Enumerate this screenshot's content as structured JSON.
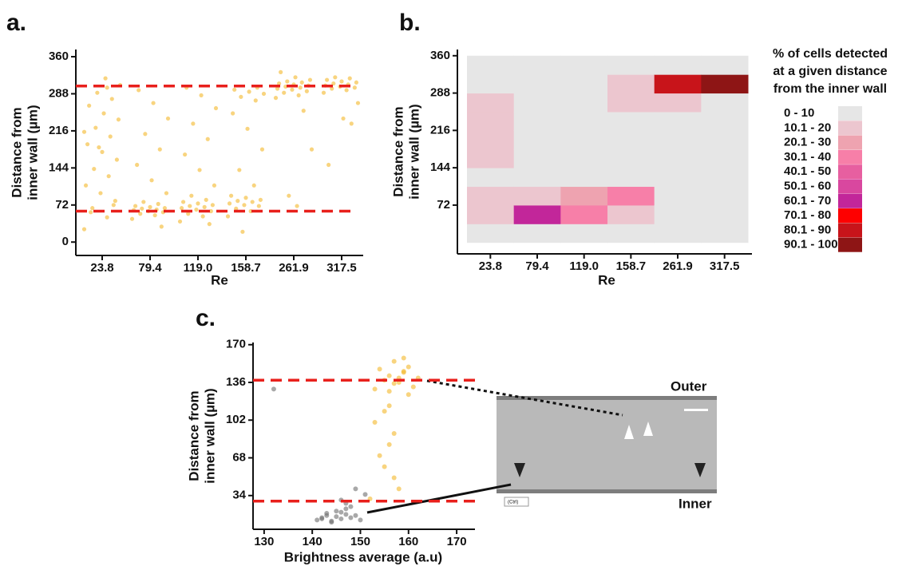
{
  "chart_data": [
    {
      "type": "strip",
      "panel_label": "a.",
      "x_label": "Re",
      "y_label": [
        "Distance from",
        "inner wall (µm)"
      ],
      "categories": [
        "23.8",
        "79.4",
        "119.0",
        "158.7",
        "261.9",
        "317.5"
      ],
      "values": [
        [
          25,
          48,
          66,
          80,
          95,
          110,
          128,
          142,
          160,
          175,
          190,
          205,
          222,
          238,
          250,
          265,
          278,
          290,
          305,
          318,
          58,
          72,
          184,
          214,
          300
        ],
        [
          45,
          52,
          55,
          58,
          60,
          62,
          63,
          65,
          66,
          68,
          70,
          74,
          78,
          95,
          120,
          150,
          180,
          210,
          240,
          270,
          295,
          30
        ],
        [
          40,
          50,
          55,
          60,
          63,
          66,
          68,
          70,
          72,
          75,
          78,
          82,
          90,
          110,
          140,
          170,
          200,
          230,
          260,
          285,
          300,
          35
        ],
        [
          50,
          60,
          65,
          70,
          72,
          75,
          78,
          80,
          82,
          86,
          90,
          110,
          140,
          180,
          220,
          250,
          275,
          282,
          288,
          292,
          296,
          300,
          20
        ],
        [
          280,
          285,
          290,
          293,
          296,
          298,
          300,
          302,
          304,
          306,
          308,
          310,
          312,
          315,
          320,
          330,
          255,
          90,
          180,
          70
        ],
        [
          290,
          295,
          298,
          300,
          302,
          304,
          306,
          308,
          310,
          312,
          315,
          318,
          320,
          270,
          240,
          150,
          230
        ]
      ],
      "color": "#f4b82a",
      "ref_lines": [
        303,
        60
      ],
      "ref_color": "#e8201c",
      "ylim": [
        -26,
        374
      ],
      "yticks": [
        0,
        72,
        144,
        216,
        288,
        360
      ]
    },
    {
      "type": "heatmap",
      "panel_label": "b.",
      "x_label": "Re",
      "y_label": [
        "Distance from",
        "inner wall (µm)"
      ],
      "categories": [
        "23.8",
        "79.4",
        "119.0",
        "158.7",
        "261.9",
        "317.5"
      ],
      "y_bins": [
        0,
        36,
        72,
        108,
        144,
        180,
        216,
        252,
        288,
        324,
        360
      ],
      "z": [
        [
          5,
          15,
          15,
          5,
          15,
          15,
          15,
          15,
          5,
          5
        ],
        [
          5,
          65,
          15,
          5,
          5,
          5,
          5,
          5,
          5,
          5
        ],
        [
          5,
          35,
          25,
          5,
          5,
          5,
          5,
          5,
          5,
          5
        ],
        [
          5,
          15,
          35,
          5,
          5,
          5,
          5,
          15,
          15,
          5
        ],
        [
          5,
          5,
          5,
          5,
          5,
          5,
          5,
          15,
          85,
          5
        ],
        [
          5,
          5,
          5,
          5,
          5,
          5,
          5,
          5,
          95,
          5
        ]
      ],
      "legend_title": [
        "% of cells detected",
        "at a given distance",
        "from the inner wall"
      ],
      "color_classes": [
        {
          "label": "0 - 10",
          "min": 0,
          "max": 10,
          "color": "#e6e6e6"
        },
        {
          "label": "10.1 - 20",
          "min": 10.1,
          "max": 20,
          "color": "#ecc6cf"
        },
        {
          "label": "20.1 - 30",
          "min": 20.1,
          "max": 30,
          "color": "#eea3b0"
        },
        {
          "label": "30.1 - 40",
          "min": 30.1,
          "max": 40,
          "color": "#f77fa8"
        },
        {
          "label": "40.1 - 50",
          "min": 40.1,
          "max": 50,
          "color": "#e75fa0"
        },
        {
          "label": "50.1 - 60",
          "min": 50.1,
          "max": 60,
          "color": "#d9479f"
        },
        {
          "label": "60.1 - 70",
          "min": 60.1,
          "max": 70,
          "color": "#c2269a"
        },
        {
          "label": "70.1 - 80",
          "min": 70.1,
          "max": 80,
          "color": "#fe0000"
        },
        {
          "label": "80.1 - 90",
          "min": 80.1,
          "max": 90,
          "color": "#c8141a"
        },
        {
          "label": "90.1 - 100",
          "min": 90.1,
          "max": 100,
          "color": "#8e1515"
        }
      ],
      "ylim": [
        -22,
        372
      ],
      "yticks": [
        72,
        144,
        216,
        288,
        360
      ]
    },
    {
      "type": "scatter",
      "panel_label": "c.",
      "x_label": "Brightness average (a.u)",
      "y_label": [
        "Distance from",
        "inner wall (µm)"
      ],
      "series": [
        {
          "color": "#f4b82a",
          "x": [
            153,
            155,
            156,
            157,
            158,
            159,
            160,
            161,
            154,
            157,
            159,
            156,
            158,
            155,
            160,
            162,
            153,
            157,
            156,
            154,
            155,
            157,
            158,
            152,
            156,
            159
          ],
          "values": [
            130,
            138,
            142,
            135,
            140,
            145,
            150,
            132,
            148,
            155,
            158,
            128,
            136,
            110,
            125,
            140,
            100,
            90,
            80,
            70,
            60,
            50,
            40,
            31,
            115,
            146
          ]
        },
        {
          "color": "#6e6e6e",
          "x": [
            141,
            142,
            143,
            144,
            145,
            146,
            147,
            148,
            149,
            150,
            143,
            145,
            147,
            144,
            146,
            142,
            148,
            146,
            132,
            151,
            149,
            147
          ],
          "values": [
            12,
            14,
            16,
            11,
            15,
            13,
            17,
            14,
            16,
            12,
            18,
            20,
            22,
            10,
            19,
            13,
            24,
            30,
            130,
            35,
            40,
            27
          ]
        }
      ],
      "ref_lines": [
        138,
        29
      ],
      "ref_color": "#e8201c",
      "xlim": [
        127.7,
        173.8
      ],
      "xticks": [
        130,
        140,
        150,
        160,
        170
      ],
      "ylim": [
        3.6,
        172
      ],
      "yticks": [
        34,
        68,
        102,
        136,
        170
      ],
      "inset": {
        "top_label": "Outer",
        "bottom_label": "Inner",
        "paste_label": "(Ctrl)"
      }
    }
  ]
}
